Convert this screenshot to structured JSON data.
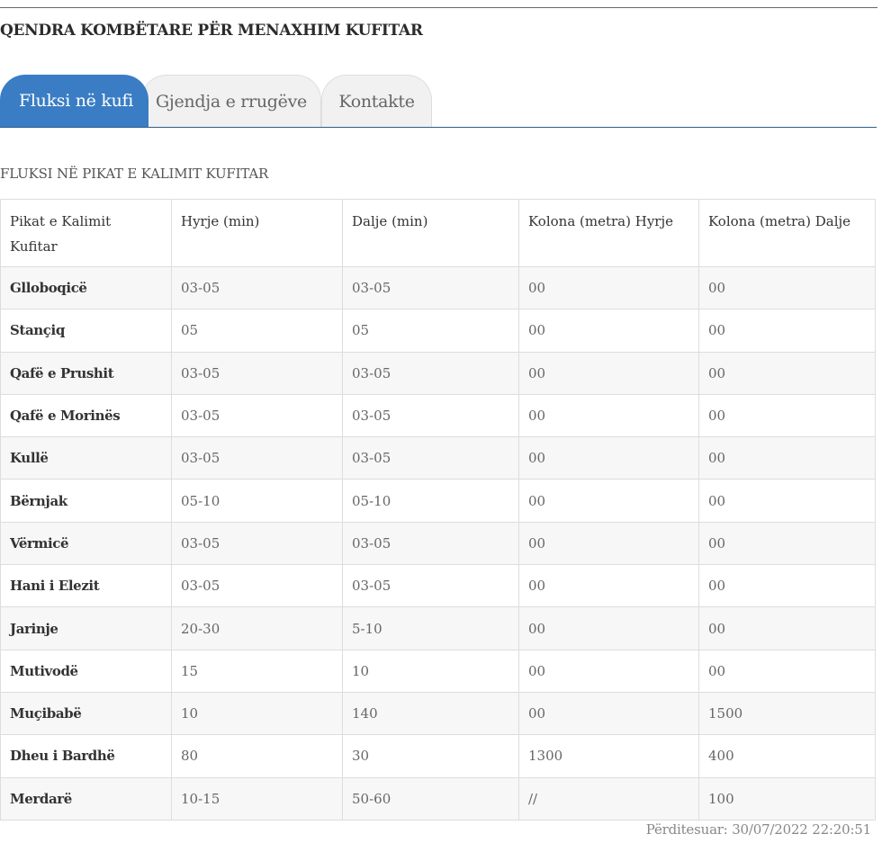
{
  "site": {
    "title": "QENDRA KOMBËTARE PËR MENAXHIM KUFITAR"
  },
  "tabs": [
    {
      "label": "Fluksi në kufi",
      "active": true
    },
    {
      "label": "Gjendja e rrugëve",
      "active": false
    },
    {
      "label": "Kontakte",
      "active": false
    }
  ],
  "section": {
    "title": "FLUKSI NË PIKAT E KALIMIT KUFITAR"
  },
  "table": {
    "headers": [
      "Pikat e Kalimit Kufitar",
      "Hyrje (min)",
      "Dalje (min)",
      "Kolona (metra) Hyrje",
      "Kolona (metra) Dalje"
    ],
    "rows": [
      [
        "Glloboqicë",
        "03-05",
        "03-05",
        "00",
        "00"
      ],
      [
        "Stançiq",
        "05",
        "05",
        "00",
        "00"
      ],
      [
        "Qafë e Prushit",
        "03-05",
        "03-05",
        "00",
        "00"
      ],
      [
        "Qafë e Morinës",
        "03-05",
        "03-05",
        "00",
        "00"
      ],
      [
        "Kullë",
        "03-05",
        "03-05",
        "00",
        "00"
      ],
      [
        "Bërnjak",
        "05-10",
        "05-10",
        "00",
        "00"
      ],
      [
        "Vërmicë",
        "03-05",
        "03-05",
        "00",
        "00"
      ],
      [
        "Hani i Elezit",
        "03-05",
        "03-05",
        "00",
        "00"
      ],
      [
        "Jarinje",
        "20-30",
        "5-10",
        "00",
        "00"
      ],
      [
        "Mutivodë",
        "15",
        "10",
        "00",
        "00"
      ],
      [
        "Muçibabë",
        "10",
        "140",
        "00",
        "1500"
      ],
      [
        "Dheu i Bardhë",
        "80",
        "30",
        "1300",
        "400"
      ],
      [
        "Merdarë",
        "10-15",
        "50-60",
        "//",
        "100"
      ]
    ]
  },
  "footer": {
    "updated": "Përditesuar: 30/07/2022 22:20:51"
  },
  "colors": {
    "tab_active": "#3a7dc4",
    "tab_inactive": "#f1f1f1",
    "tab_rule": "#2f5f8a"
  }
}
